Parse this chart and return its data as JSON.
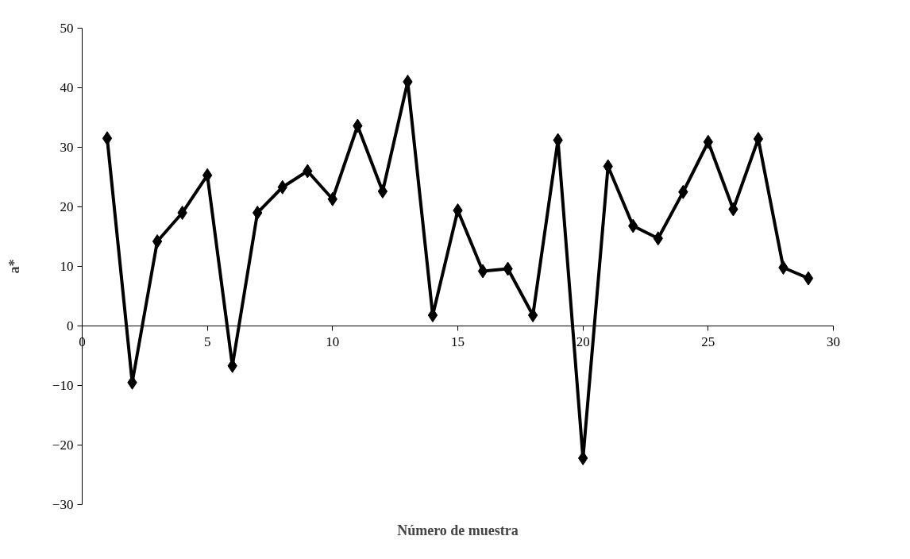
{
  "chart_data": {
    "type": "line",
    "xlabel": "Número de muestra",
    "ylabel": "a*",
    "x": [
      1,
      2,
      3,
      4,
      5,
      6,
      7,
      8,
      9,
      10,
      11,
      12,
      13,
      14,
      15,
      16,
      17,
      18,
      19,
      20,
      21,
      22,
      23,
      24,
      25,
      26,
      27,
      28,
      29
    ],
    "series": [
      {
        "color": "#000000",
        "values": [
          31.5,
          -9.5,
          14.2,
          19,
          25.3,
          -6.7,
          19,
          23.3,
          26,
          21.3,
          33.6,
          22.6,
          41,
          1.8,
          19.4,
          9.2,
          9.6,
          1.8,
          31.2,
          -22.2,
          26.8,
          16.8,
          14.7,
          22.5,
          30.9,
          19.6,
          31.4,
          9.8,
          8
        ]
      }
    ],
    "xlim": [
      0,
      30
    ],
    "xticks": [
      0,
      5,
      10,
      15,
      20,
      25,
      30
    ],
    "ylim": [
      -30,
      50
    ],
    "yticks": [
      -30,
      -20,
      -10,
      0,
      10,
      20,
      30,
      40,
      50
    ],
    "marker": "diamond",
    "line_style": "solid"
  }
}
